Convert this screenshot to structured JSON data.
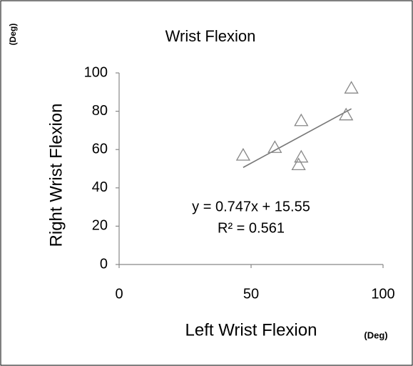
{
  "chart_data": {
    "type": "scatter",
    "title": "Wrist Flexion",
    "x_label": "Left Wrist Flexion",
    "y_label": "Right Wrist Flexion",
    "x_unit": "(Deg)",
    "y_unit": "(Deg)",
    "x": [
      47,
      59,
      69,
      69,
      68,
      86,
      88
    ],
    "y": [
      57,
      61,
      75,
      56,
      52,
      78,
      92
    ],
    "color": "#888888",
    "xlim": [
      0,
      100
    ],
    "xticks": [
      0,
      50,
      100
    ],
    "ylim": [
      0,
      100
    ],
    "yticks": [
      0,
      20,
      40,
      60,
      80,
      100
    ],
    "trendline": {
      "equation": "y = 0.747x + 15.55",
      "r2_label": "R² = 0.561",
      "slope": 0.747,
      "intercept": 15.55,
      "color": "#777777"
    }
  }
}
